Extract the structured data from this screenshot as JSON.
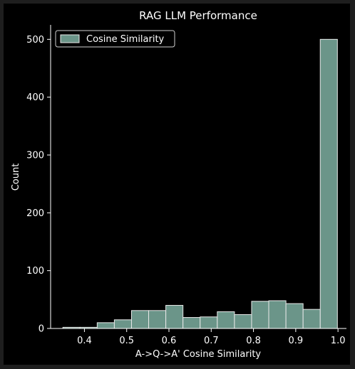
{
  "chart_data": {
    "type": "histogram",
    "title": "RAG LLM Performance",
    "xlabel": "A->Q->A' Cosine Similarity",
    "ylabel": "Count",
    "xlim": [
      0.32,
      1.02
    ],
    "ylim": [
      0,
      525
    ],
    "x_ticks": [
      {
        "value": 0.4,
        "label": "0.4"
      },
      {
        "value": 0.5,
        "label": "0.5"
      },
      {
        "value": 0.6,
        "label": "0.6"
      },
      {
        "value": 0.7,
        "label": "0.7"
      },
      {
        "value": 0.8,
        "label": "0.8"
      },
      {
        "value": 0.9,
        "label": "0.9"
      },
      {
        "value": 1.0,
        "label": "1.0"
      }
    ],
    "y_ticks": [
      {
        "value": 0,
        "label": "0"
      },
      {
        "value": 100,
        "label": "100"
      },
      {
        "value": 200,
        "label": "200"
      },
      {
        "value": 300,
        "label": "300"
      },
      {
        "value": 400,
        "label": "400"
      },
      {
        "value": 500,
        "label": "500"
      }
    ],
    "bin_edges": [
      0.349,
      0.3896,
      0.4302,
      0.4708,
      0.5114,
      0.552,
      0.5926,
      0.6332,
      0.6738,
      0.7144,
      0.755,
      0.7956,
      0.8362,
      0.8768,
      0.9174,
      0.958,
      0.9986
    ],
    "counts": [
      2,
      2,
      10,
      15,
      31,
      31,
      40,
      19,
      20,
      29,
      24,
      47,
      48,
      43,
      33,
      500
    ],
    "legend": {
      "label": "Cosine Similarity",
      "position": "top-left"
    },
    "grid": false,
    "colors": {
      "bar_fill": "#6b9589",
      "bar_edge": "#e8e8e8",
      "axis": "#ffffff",
      "background": "#000000",
      "frame": "#1e1e1e"
    }
  }
}
